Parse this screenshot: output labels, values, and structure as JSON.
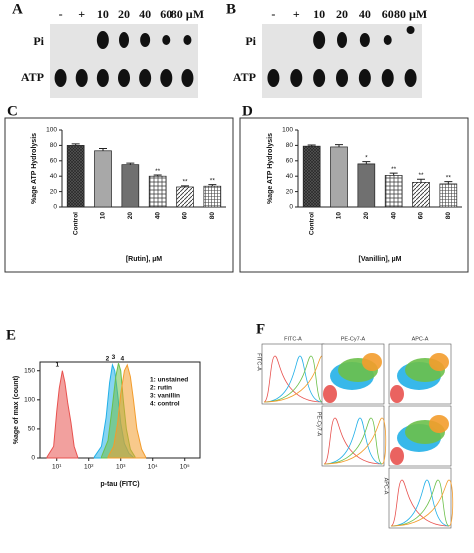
{
  "gels": [
    {
      "panel": "A",
      "lanes": [
        "-",
        "+",
        "10",
        "20",
        "40",
        "60",
        "80 µM"
      ],
      "bands": [
        "Pi",
        "ATP"
      ]
    },
    {
      "panel": "B",
      "lanes": [
        "-",
        "+",
        "10",
        "20",
        "40",
        "60",
        "80 µM"
      ],
      "bands": [
        "Pi",
        "ATP"
      ]
    }
  ],
  "chart_data": [
    {
      "type": "bar",
      "panel": "C",
      "ylabel": "%age ATP Hydrolysis",
      "xlabel": "[Rutin], µM",
      "categories": [
        "Control",
        "10",
        "20",
        "40",
        "60",
        "80"
      ],
      "values": [
        80,
        73,
        55,
        40,
        26,
        27
      ],
      "errors": [
        2,
        3,
        2,
        1.5,
        1.5,
        2
      ],
      "significance": [
        null,
        null,
        null,
        "**",
        "**",
        "**"
      ],
      "ylim": [
        0,
        100
      ],
      "yticks": [
        0,
        20,
        40,
        60,
        80,
        100
      ]
    },
    {
      "type": "bar",
      "panel": "D",
      "ylabel": "%age ATP Hydrolysis",
      "xlabel": "[Vanillin], µM",
      "categories": [
        "Control",
        "10",
        "20",
        "40",
        "60",
        "80"
      ],
      "values": [
        79,
        78,
        56,
        41,
        32,
        30
      ],
      "errors": [
        1.5,
        3,
        3,
        3,
        4,
        3
      ],
      "significance": [
        null,
        null,
        "*",
        "**",
        "**",
        "**"
      ],
      "ylim": [
        0,
        100
      ],
      "yticks": [
        0,
        20,
        40,
        60,
        80,
        100
      ]
    },
    {
      "type": "area",
      "panel": "E",
      "ylabel": "%age of max (count)",
      "xlabel": "p-tau (FITC)",
      "log_x": true,
      "xlim": [
        3,
        300000
      ],
      "xticks": [
        {
          "value": 10,
          "label": "10¹"
        },
        {
          "value": 100,
          "label": "10²"
        },
        {
          "value": 1000,
          "label": "10³"
        },
        {
          "value": 10000,
          "label": "10⁴"
        },
        {
          "value": 100000,
          "label": "10⁵"
        }
      ],
      "ylim": [
        0,
        165
      ],
      "yticks": [
        0,
        50,
        100,
        150
      ],
      "series": [
        {
          "name": "1: unstained",
          "label": "1",
          "color": "#e8524f",
          "x": [
            5,
            8,
            10,
            12,
            15,
            18,
            22,
            28,
            35,
            45
          ],
          "values": [
            2,
            20,
            80,
            120,
            150,
            130,
            95,
            60,
            20,
            2
          ]
        },
        {
          "name": "2: rutin",
          "label": "2",
          "color": "#22b0e8",
          "x": [
            150,
            250,
            350,
            450,
            550,
            650,
            800,
            1000,
            1300,
            1800,
            2500
          ],
          "values": [
            2,
            20,
            70,
            130,
            160,
            150,
            110,
            60,
            25,
            8,
            1
          ]
        },
        {
          "name": "3: vanillin",
          "label": "3",
          "color": "#6cc04a",
          "x": [
            250,
            400,
            550,
            700,
            850,
            1000,
            1200,
            1500,
            2000,
            2800
          ],
          "values": [
            2,
            30,
            90,
            140,
            163,
            150,
            100,
            50,
            15,
            2
          ]
        },
        {
          "name": "4: control",
          "label": "4",
          "color": "#f39c2c",
          "x": [
            400,
            600,
            800,
            1000,
            1300,
            1600,
            2000,
            2500,
            3200,
            4500,
            6000
          ],
          "values": [
            2,
            20,
            60,
            110,
            150,
            160,
            140,
            100,
            50,
            15,
            2
          ]
        }
      ]
    }
  ],
  "flow_matrix": {
    "panel": "F",
    "channels": [
      "FITC-A",
      "PE-Cy7-A",
      "APC-A"
    ]
  }
}
